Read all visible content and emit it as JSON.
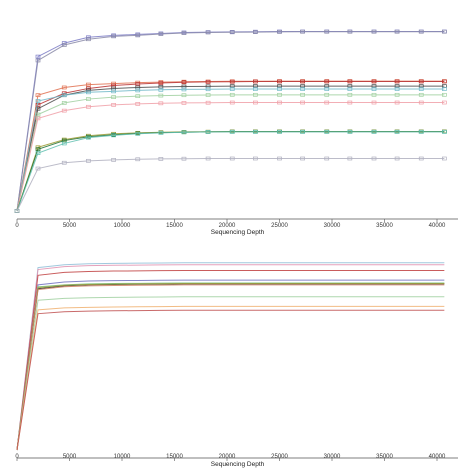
{
  "chart_data": [
    {
      "type": "line",
      "title": "",
      "xlabel": "Sequencing Depth",
      "ylabel": "",
      "xlim": [
        0,
        42000
      ],
      "ylim": [
        0,
        100
      ],
      "grid": false,
      "legend": "none",
      "x_ticks": [
        0,
        5000,
        10000,
        15000,
        20000,
        25000,
        30000,
        35000,
        40000
      ],
      "x_tick_labels": [
        "0",
        "5000",
        "10000",
        "15000",
        "20000",
        "25000",
        "30000",
        "35000",
        "40000"
      ],
      "x": [
        0,
        2000,
        4500,
        6800,
        9200,
        11500,
        13700,
        15900,
        18200,
        20500,
        22700,
        25000,
        27200,
        29500,
        31700,
        34000,
        36200,
        38500,
        40700
      ],
      "series": [
        {
          "color": "#7b7bc6",
          "marker": "square",
          "values": [
            0,
            80,
            87,
            90,
            91,
            91.5,
            92,
            92.5,
            92.7,
            92.8,
            92.9,
            93,
            93,
            93,
            93,
            93,
            93,
            93,
            93
          ]
        },
        {
          "color": "#8a8aa8",
          "marker": "square",
          "values": [
            0,
            78,
            86,
            89,
            90.5,
            91,
            91.7,
            92.2,
            92.5,
            92.6,
            92.7,
            92.8,
            92.9,
            92.9,
            92.9,
            92.9,
            92.9,
            92.9,
            92.9
          ]
        },
        {
          "color": "#e07050",
          "marker": "square",
          "values": [
            0,
            60,
            64,
            65.5,
            66,
            66.5,
            66.8,
            67,
            67.1,
            67.2,
            67.2,
            67.3,
            67.3,
            67.3,
            67.3,
            67.3,
            67.3,
            67.3,
            67.3
          ]
        },
        {
          "color": "#b83030",
          "marker": "square",
          "values": [
            0,
            55,
            61,
            63.5,
            65,
            65.8,
            66.3,
            66.7,
            66.9,
            67,
            67.1,
            67.1,
            67.1,
            67.1,
            67.1,
            67.1,
            67.1,
            67.1,
            67.1
          ]
        },
        {
          "color": "#4a4a4a",
          "marker": "square",
          "values": [
            0,
            53,
            60,
            62.5,
            63.5,
            64,
            64.3,
            64.5,
            64.6,
            64.7,
            64.7,
            64.7,
            64.7,
            64.7,
            64.7,
            64.7,
            64.7,
            64.7,
            64.7
          ]
        },
        {
          "color": "#70b8c8",
          "marker": "square",
          "values": [
            0,
            57,
            60,
            61.5,
            62,
            62.5,
            62.8,
            63,
            63.1,
            63.2,
            63.2,
            63.2,
            63.2,
            63.2,
            63.2,
            63.2,
            63.2,
            63.2,
            63.2
          ]
        },
        {
          "color": "#a0d0a0",
          "marker": "square",
          "values": [
            0,
            50,
            56,
            58,
            59,
            59.5,
            59.8,
            60,
            60.1,
            60.2,
            60.2,
            60.2,
            60.2,
            60.2,
            60.2,
            60.2,
            60.2,
            60.2,
            60.2
          ]
        },
        {
          "color": "#f0a0a8",
          "marker": "square",
          "values": [
            0,
            48,
            52,
            54,
            55,
            55.5,
            55.8,
            56,
            56.1,
            56.2,
            56.2,
            56.2,
            56.2,
            56.2,
            56.2,
            56.2,
            56.2,
            56.2,
            56.2
          ]
        },
        {
          "color": "#9a9a30",
          "marker": "square",
          "values": [
            0,
            33,
            37,
            39,
            40,
            40.5,
            40.8,
            41,
            41.1,
            41.2,
            41.2,
            41.2,
            41.2,
            41.2,
            41.2,
            41.2,
            41.2,
            41.2,
            41.2
          ]
        },
        {
          "color": "#207030",
          "marker": "square",
          "values": [
            0,
            32,
            36.5,
            38.5,
            39.5,
            40.2,
            40.6,
            40.8,
            41,
            41.1,
            41.1,
            41.1,
            41.1,
            41.1,
            41.1,
            41.1,
            41.1,
            41.1,
            41.1
          ]
        },
        {
          "color": "#60c0b0",
          "marker": "square",
          "values": [
            0,
            30,
            35,
            38,
            39.2,
            40,
            40.5,
            40.8,
            41,
            41,
            41,
            41,
            41,
            41,
            41,
            41,
            41,
            41,
            41
          ]
        },
        {
          "color": "#b0b0c0",
          "marker": "square",
          "values": [
            0,
            22,
            25,
            26,
            26.5,
            26.8,
            27,
            27.1,
            27.2,
            27.2,
            27.2,
            27.2,
            27.2,
            27.2,
            27.2,
            27.2,
            27.2,
            27.2,
            27.2
          ]
        }
      ]
    },
    {
      "type": "line",
      "title": "",
      "xlabel": "Sequencing Depth",
      "ylabel": "",
      "xlim": [
        0,
        42000
      ],
      "ylim": [
        0,
        100
      ],
      "grid": false,
      "legend": "none",
      "x_ticks": [
        0,
        5000,
        10000,
        15000,
        20000,
        25000,
        30000,
        35000,
        40000
      ],
      "x_tick_labels": [
        "0",
        "5000",
        "10000",
        "15000",
        "20000",
        "25000",
        "30000",
        "35000",
        "40000"
      ],
      "x": [
        0,
        2000,
        4500,
        6800,
        9200,
        11500,
        13700,
        15900,
        18200,
        20500,
        22700,
        25000,
        27200,
        29500,
        31700,
        34000,
        36200,
        38500,
        40700
      ],
      "series": [
        {
          "color": "#90c0d8",
          "marker": "none",
          "values": [
            0,
            95,
            96.5,
            97,
            97.2,
            97.3,
            97.4,
            97.5,
            97.5,
            97.5,
            97.5,
            97.5,
            97.5,
            97.5,
            97.5,
            97.5,
            97.5,
            97.5,
            97.5
          ]
        },
        {
          "color": "#e090b0",
          "marker": "none",
          "values": [
            0,
            94,
            95.5,
            96,
            96.2,
            96.3,
            96.4,
            96.5,
            96.5,
            96.5,
            96.5,
            96.5,
            96.5,
            96.5,
            96.5,
            96.5,
            96.5,
            96.5,
            96.5
          ]
        },
        {
          "color": "#c04040",
          "marker": "none",
          "values": [
            0,
            91,
            92.5,
            93,
            93.2,
            93.3,
            93.4,
            93.5,
            93.5,
            93.5,
            93.5,
            93.5,
            93.5,
            93.5,
            93.5,
            93.5,
            93.5,
            93.5,
            93.5
          ]
        },
        {
          "color": "#7070c0",
          "marker": "none",
          "values": [
            0,
            86,
            87.5,
            88,
            88.2,
            88.3,
            88.4,
            88.5,
            88.5,
            88.5,
            88.5,
            88.5,
            88.5,
            88.5,
            88.5,
            88.5,
            88.5,
            88.5,
            88.5
          ]
        },
        {
          "color": "#70c070",
          "marker": "none",
          "values": [
            0,
            85,
            86,
            86.5,
            86.7,
            86.8,
            86.9,
            87,
            87,
            87,
            87,
            87,
            87,
            87,
            87,
            87,
            87,
            87,
            87
          ]
        },
        {
          "color": "#303030",
          "marker": "none",
          "values": [
            0,
            84,
            85.5,
            86,
            86.2,
            86.3,
            86.4,
            86.5,
            86.5,
            86.5,
            86.5,
            86.5,
            86.5,
            86.5,
            86.5,
            86.5,
            86.5,
            86.5,
            86.5
          ]
        },
        {
          "color": "#a0a040",
          "marker": "none",
          "values": [
            0,
            84.5,
            85.8,
            86.2,
            86.4,
            86.5,
            86.6,
            86.7,
            86.7,
            86.7,
            86.7,
            86.7,
            86.7,
            86.7,
            86.7,
            86.7,
            86.7,
            86.7,
            86.7
          ]
        },
        {
          "color": "#d08060",
          "marker": "none",
          "values": [
            0,
            83.5,
            85,
            85.5,
            85.7,
            85.8,
            85.9,
            86,
            86,
            86,
            86,
            86,
            86,
            86,
            86,
            86,
            86,
            86,
            86
          ]
        },
        {
          "color": "#a0d0a0",
          "marker": "none",
          "values": [
            0,
            78,
            79,
            79.3,
            79.5,
            79.6,
            79.7,
            79.8,
            79.8,
            79.8,
            79.8,
            79.8,
            79.8,
            79.8,
            79.8,
            79.8,
            79.8,
            79.8,
            79.8
          ]
        },
        {
          "color": "#f0b070",
          "marker": "none",
          "values": [
            0,
            73,
            74,
            74.3,
            74.5,
            74.6,
            74.7,
            74.8,
            74.8,
            74.8,
            74.8,
            74.8,
            74.8,
            74.8,
            74.8,
            74.8,
            74.8,
            74.8,
            74.8
          ]
        },
        {
          "color": "#c05050",
          "marker": "none",
          "values": [
            0,
            71,
            72,
            72.3,
            72.5,
            72.6,
            72.7,
            72.8,
            72.8,
            72.8,
            72.8,
            72.8,
            72.8,
            72.8,
            72.8,
            72.8,
            72.8,
            72.8,
            72.8
          ]
        }
      ]
    }
  ]
}
